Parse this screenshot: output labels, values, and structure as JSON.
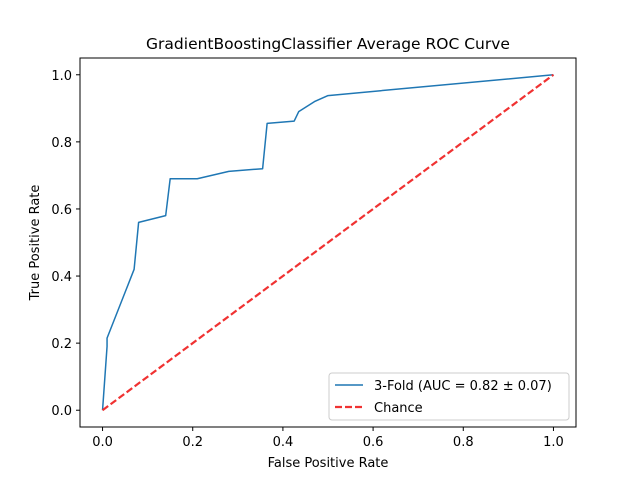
{
  "chart_data": {
    "type": "line",
    "title": "GradientBoostingClassifier Average ROC Curve",
    "xlabel": "False Positive Rate",
    "ylabel": "True Positive Rate",
    "xlim": [
      -0.05,
      1.05
    ],
    "ylim": [
      -0.05,
      1.05
    ],
    "xticks": [
      0.0,
      0.2,
      0.4,
      0.6,
      0.8,
      1.0
    ],
    "yticks": [
      0.0,
      0.2,
      0.4,
      0.6,
      0.8,
      1.0
    ],
    "xtick_labels": [
      "0.0",
      "0.2",
      "0.4",
      "0.6",
      "0.8",
      "1.0"
    ],
    "ytick_labels": [
      "0.0",
      "0.2",
      "0.4",
      "0.6",
      "0.8",
      "1.0"
    ],
    "grid": false,
    "legend_position": "lower-right",
    "series": [
      {
        "name": "3-Fold (AUC = 0.82 ± 0.07)",
        "color": "#1f77b4",
        "style": "solid",
        "x": [
          0.0,
          0.01,
          0.01,
          0.07,
          0.08,
          0.14,
          0.15,
          0.21,
          0.28,
          0.355,
          0.365,
          0.425,
          0.435,
          0.47,
          0.5,
          1.0
        ],
        "y": [
          0.0,
          0.19,
          0.215,
          0.42,
          0.56,
          0.58,
          0.69,
          0.69,
          0.712,
          0.72,
          0.855,
          0.862,
          0.89,
          0.92,
          0.938,
          1.0
        ]
      },
      {
        "name": "Chance",
        "color": "#f03232",
        "style": "dashed",
        "x": [
          0.0,
          1.0
        ],
        "y": [
          0.0,
          1.0
        ]
      }
    ]
  }
}
